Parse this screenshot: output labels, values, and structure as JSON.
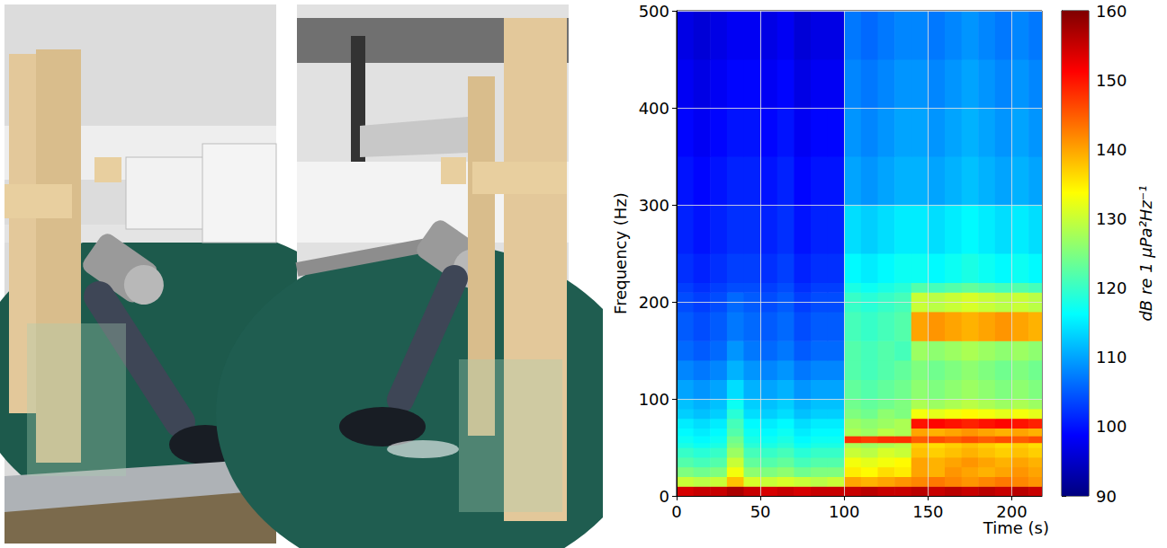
{
  "chart_data": {
    "type": "heatmap",
    "x_label": "Time (s)",
    "y_label": "Frequency (Hz)",
    "xlim": [
      0,
      218
    ],
    "xticks": [
      0,
      50,
      100,
      150,
      200
    ],
    "ylim": [
      0,
      500
    ],
    "yticks": [
      0,
      100,
      200,
      300,
      400,
      500
    ],
    "grid": true,
    "time_edges": [
      0,
      10,
      20,
      30,
      40,
      50,
      60,
      70,
      80,
      90,
      100,
      110,
      120,
      130,
      140,
      150,
      160,
      170,
      180,
      190,
      200,
      210,
      218
    ],
    "frequency_edges": [
      0,
      10,
      20,
      30,
      40,
      50,
      55,
      62,
      70,
      80,
      90,
      100,
      120,
      140,
      160,
      190,
      210,
      220,
      250,
      300,
      350,
      400,
      450,
      500
    ],
    "levels": [
      [
        154,
        155,
        155,
        157,
        155,
        154,
        155,
        154,
        155,
        155,
        155,
        156,
        155,
        155,
        156,
        155,
        156,
        155,
        156,
        155,
        156,
        155
      ],
      [
        130,
        129,
        130,
        138,
        131,
        130,
        131,
        130,
        129,
        130,
        140,
        139,
        140,
        141,
        142,
        143,
        142,
        141,
        142,
        143,
        142,
        141
      ],
      [
        125,
        124,
        125,
        133,
        126,
        125,
        126,
        124,
        125,
        125,
        135,
        134,
        136,
        135,
        140,
        139,
        141,
        140,
        139,
        140,
        141,
        140
      ],
      [
        122,
        121,
        122,
        130,
        123,
        122,
        123,
        121,
        122,
        122,
        133,
        132,
        133,
        134,
        140,
        139,
        140,
        141,
        140,
        139,
        140,
        139
      ],
      [
        120,
        119,
        120,
        127,
        121,
        120,
        121,
        119,
        120,
        120,
        130,
        129,
        131,
        130,
        138,
        137,
        138,
        139,
        138,
        137,
        138,
        137
      ],
      [
        118,
        117,
        118,
        125,
        119,
        118,
        119,
        117,
        118,
        118,
        128,
        127,
        128,
        129,
        137,
        136,
        137,
        138,
        137,
        136,
        137,
        136
      ],
      [
        117,
        116,
        117,
        124,
        118,
        117,
        118,
        116,
        117,
        117,
        148,
        147,
        148,
        148,
        145,
        146,
        145,
        146,
        145,
        146,
        145,
        146
      ],
      [
        116,
        115,
        116,
        122,
        117,
        116,
        117,
        115,
        116,
        116,
        128,
        127,
        129,
        128,
        140,
        139,
        140,
        141,
        140,
        139,
        140,
        139
      ],
      [
        115,
        114,
        115,
        121,
        116,
        115,
        116,
        114,
        115,
        115,
        127,
        126,
        127,
        128,
        150,
        151,
        150,
        149,
        150,
        151,
        150,
        149
      ],
      [
        113,
        112,
        113,
        119,
        114,
        113,
        114,
        112,
        113,
        113,
        125,
        124,
        126,
        125,
        133,
        132,
        133,
        134,
        133,
        132,
        133,
        132
      ],
      [
        112,
        111,
        112,
        117,
        113,
        112,
        113,
        111,
        112,
        112,
        124,
        123,
        124,
        125,
        128,
        127,
        128,
        129,
        128,
        127,
        128,
        127
      ],
      [
        110,
        109,
        110,
        114,
        111,
        110,
        111,
        109,
        110,
        110,
        123,
        122,
        123,
        124,
        126,
        125,
        126,
        127,
        126,
        125,
        126,
        125
      ],
      [
        108,
        107,
        108,
        111,
        109,
        108,
        109,
        107,
        108,
        108,
        122,
        121,
        122,
        123,
        125,
        124,
        125,
        126,
        125,
        124,
        125,
        124
      ],
      [
        106,
        105,
        106,
        109,
        107,
        106,
        107,
        105,
        106,
        106,
        122,
        121,
        122,
        121,
        127,
        126,
        127,
        128,
        127,
        126,
        127,
        126
      ],
      [
        105,
        104,
        105,
        107,
        106,
        105,
        106,
        104,
        105,
        105,
        121,
        120,
        121,
        122,
        140,
        141,
        140,
        139,
        140,
        141,
        140,
        139
      ],
      [
        104,
        103,
        104,
        106,
        105,
        104,
        105,
        103,
        104,
        104,
        120,
        119,
        120,
        121,
        130,
        129,
        130,
        131,
        130,
        129,
        130,
        129
      ],
      [
        103,
        102,
        103,
        104,
        104,
        103,
        104,
        102,
        103,
        103,
        118,
        117,
        118,
        119,
        122,
        121,
        122,
        123,
        122,
        121,
        122,
        121
      ],
      [
        102,
        101,
        102,
        103,
        103,
        102,
        103,
        101,
        102,
        102,
        116,
        115,
        116,
        117,
        117,
        116,
        117,
        118,
        117,
        116,
        117,
        116
      ],
      [
        101,
        100,
        101,
        102,
        102,
        101,
        102,
        100,
        101,
        101,
        114,
        113,
        114,
        115,
        115,
        114,
        115,
        116,
        115,
        114,
        115,
        114
      ],
      [
        100,
        99,
        100,
        101,
        101,
        100,
        101,
        99,
        100,
        100,
        110,
        109,
        110,
        111,
        111,
        110,
        111,
        112,
        111,
        110,
        111,
        110
      ],
      [
        99,
        98,
        99,
        100,
        100,
        99,
        100,
        98,
        99,
        99,
        109,
        108,
        109,
        110,
        110,
        109,
        110,
        111,
        110,
        109,
        110,
        109
      ],
      [
        98,
        97,
        98,
        99,
        99,
        98,
        99,
        97,
        98,
        98,
        108,
        107,
        108,
        109,
        109,
        108,
        109,
        110,
        109,
        108,
        109,
        108
      ],
      [
        97,
        96,
        97,
        98,
        98,
        97,
        98,
        96,
        97,
        97,
        107,
        106,
        107,
        108,
        108,
        107,
        108,
        109,
        108,
        107,
        108,
        107
      ]
    ],
    "colorbar": {
      "label": "dB re 1 μPa²Hz⁻¹",
      "range": [
        90,
        160
      ],
      "ticks": [
        90,
        100,
        110,
        120,
        130,
        140,
        150,
        160
      ]
    }
  }
}
